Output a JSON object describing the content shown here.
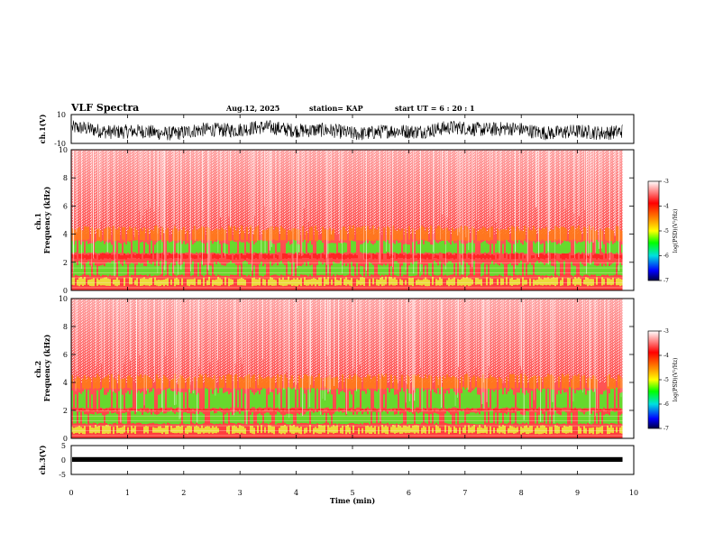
{
  "header": {
    "title": "VLF Spectra",
    "date": "Aug.12, 2025",
    "station": "station= KAP",
    "start": "start  UT =   6 : 20 : 1"
  },
  "colors": {
    "spectrogram_bg": "#ff3b3b",
    "spectrogram_speckle": "#ffffff",
    "band_yellow": "#e8ec3a",
    "band_green": "#57e82a",
    "waveform": "#000000",
    "colorbar_stops": [
      "#ffffff",
      "#ff0000",
      "#ffa500",
      "#ffff00",
      "#00ff00",
      "#00ffff",
      "#0000ff",
      "#000040"
    ]
  },
  "chart_data": [
    {
      "type": "line",
      "name": "ch1-waveform",
      "ylabel": "ch.1(V)",
      "ylim": [
        -10,
        10
      ],
      "yticks": [
        "10",
        "-10"
      ],
      "description_values": {
        "mean": -1,
        "amplitude": 5
      }
    },
    {
      "type": "heatmap",
      "name": "ch1-spectrogram",
      "ylabel": "ch.1\nFrequency (kHz)",
      "ylim": [
        0,
        10
      ],
      "yticks": [
        "0",
        "2",
        "4",
        "6",
        "8",
        "10"
      ],
      "bands_khz": [
        {
          "low": 0.3,
          "high": 0.9,
          "level": "yellow"
        },
        {
          "low": 1.0,
          "high": 2.0,
          "level": "green"
        },
        {
          "low": 2.2,
          "high": 2.6,
          "level": "red"
        },
        {
          "low": 2.6,
          "high": 3.5,
          "level": "green"
        },
        {
          "low": 3.5,
          "high": 4.5,
          "level": "orange"
        }
      ],
      "colorbar": {
        "label": "log(PSD)(V²/Hz)",
        "ticks": [
          "-3",
          "-4",
          "-5",
          "-6",
          "-7"
        ],
        "range": [
          -7,
          -3
        ]
      }
    },
    {
      "type": "heatmap",
      "name": "ch2-spectrogram",
      "ylabel": "ch.2\nFrequency (kHz)",
      "ylim": [
        0,
        10
      ],
      "yticks": [
        "0",
        "2",
        "4",
        "6",
        "8",
        "10"
      ],
      "bands_khz": [
        {
          "low": 0.3,
          "high": 0.9,
          "level": "yellow"
        },
        {
          "low": 1.0,
          "high": 1.9,
          "level": "green"
        },
        {
          "low": 1.9,
          "high": 2.1,
          "level": "red"
        },
        {
          "low": 2.1,
          "high": 3.5,
          "level": "green"
        },
        {
          "low": 3.5,
          "high": 4.5,
          "level": "orange"
        }
      ],
      "colorbar": {
        "label": "log(PSD)(V²/Hz)",
        "ticks": [
          "-3",
          "-4",
          "-5",
          "-6",
          "-7"
        ],
        "range": [
          -7,
          -3
        ]
      }
    },
    {
      "type": "line",
      "name": "ch3-waveform",
      "ylabel": "ch.3(V)",
      "ylim": [
        -5,
        5
      ],
      "yticks": [
        "5",
        "0",
        "-5"
      ],
      "description_values": {
        "mean": 0.5,
        "amplitude": 0.5
      }
    }
  ],
  "xaxis": {
    "label": "Time (min)",
    "xlim": [
      0,
      10
    ],
    "ticks": [
      "0",
      "1",
      "2",
      "3",
      "4",
      "5",
      "6",
      "7",
      "8",
      "9",
      "10"
    ],
    "data_end_min": 9.8
  }
}
